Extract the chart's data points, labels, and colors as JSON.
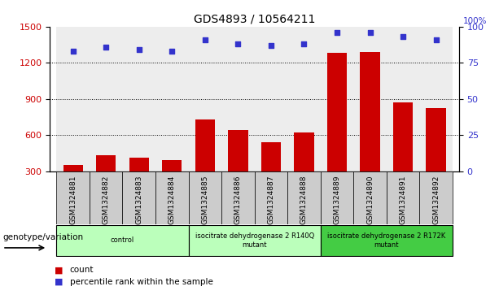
{
  "title": "GDS4893 / 10564211",
  "samples": [
    "GSM1324881",
    "GSM1324882",
    "GSM1324883",
    "GSM1324884",
    "GSM1324885",
    "GSM1324886",
    "GSM1324887",
    "GSM1324888",
    "GSM1324889",
    "GSM1324890",
    "GSM1324891",
    "GSM1324892"
  ],
  "counts": [
    350,
    430,
    410,
    390,
    730,
    640,
    540,
    620,
    1280,
    1290,
    870,
    820
  ],
  "percentiles": [
    83,
    86,
    84,
    83,
    91,
    88,
    87,
    88,
    96,
    96,
    93,
    91
  ],
  "bar_color": "#cc0000",
  "dot_color": "#3333cc",
  "ylim_left": [
    300,
    1500
  ],
  "ylim_right": [
    0,
    100
  ],
  "yticks_left": [
    300,
    600,
    900,
    1200,
    1500
  ],
  "yticks_right": [
    0,
    25,
    50,
    75,
    100
  ],
  "grid_values": [
    600,
    900,
    1200
  ],
  "group_configs": [
    {
      "start": 0,
      "end": 3,
      "label": "control",
      "color": "#bbffbb"
    },
    {
      "start": 4,
      "end": 7,
      "label": "isocitrate dehydrogenase 2 R140Q\nmutant",
      "color": "#bbffbb"
    },
    {
      "start": 8,
      "end": 11,
      "label": "isocitrate dehydrogenase 2 R172K\nmutant",
      "color": "#44cc44"
    }
  ],
  "legend_count_label": "count",
  "legend_pct_label": "percentile rank within the sample",
  "genotype_label": "genotype/variation",
  "ticklabel_color_left": "#cc0000",
  "ticklabel_color_right": "#3333cc",
  "col_bg_color": "#cccccc",
  "col_bg_alpha": 0.35
}
